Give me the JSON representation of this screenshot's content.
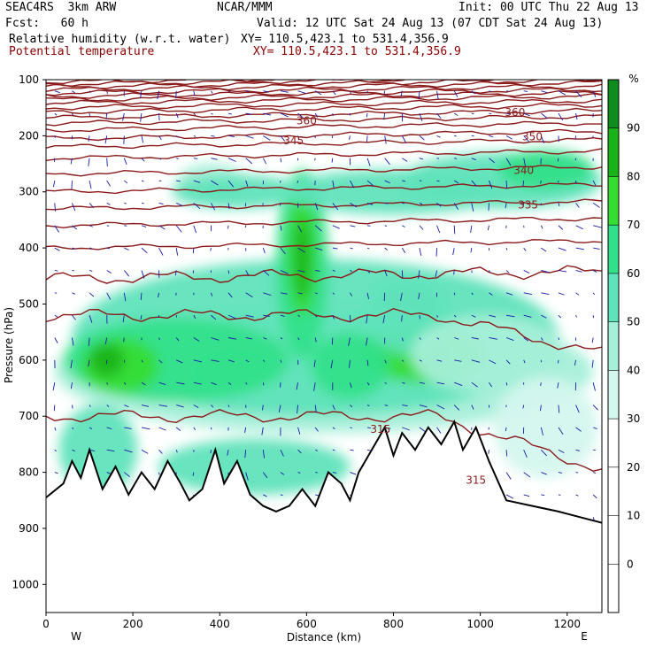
{
  "header": {
    "project": "SEAC4RS",
    "model": "3km ARW",
    "org": "NCAR/MMM",
    "init": "Init: 00 UTC Thu 22 Aug 13",
    "fcst_label": "Fcst:",
    "fcst_value": "60 h",
    "valid": "Valid: 12 UTC Sat 24 Aug 13 (07 CDT Sat 24 Aug 13)",
    "field1": "Relative humidity (w.r.t. water)",
    "field1_xy": "XY= 110.5,423.1 to 531.4,356.9",
    "field2": "Potential temperature",
    "field2_xy": "XY= 110.5,423.1 to 531.4,356.9"
  },
  "chart_data": {
    "type": "heatmap",
    "title": "",
    "xlabel": "Distance (km)",
    "ylabel": "Pressure (hPa)",
    "xlim": [
      0,
      1280
    ],
    "ylim": [
      100,
      1050
    ],
    "x_ticks": [
      0,
      200,
      400,
      600,
      800,
      1000,
      1200
    ],
    "y_ticks": [
      100,
      200,
      300,
      400,
      500,
      600,
      700,
      800,
      900,
      1000
    ],
    "y_inverted": true,
    "x_end_labels": {
      "left": "W",
      "right": "E"
    },
    "colorbar": {
      "unit": "%",
      "levels": [
        0,
        10,
        20,
        30,
        40,
        50,
        60,
        70,
        80,
        90
      ],
      "colors": [
        "#ffffff",
        "#ffffff",
        "#ffffff",
        "#d4f7ee",
        "#a6efd9",
        "#5fe3bb",
        "#33e08a",
        "#37dc33",
        "#19b319",
        "#0f8c1e"
      ]
    },
    "theta_contour_labels": [
      {
        "value": "360",
        "x": 600,
        "p": 180
      },
      {
        "value": "360",
        "x": 1080,
        "p": 165
      },
      {
        "value": "345",
        "x": 570,
        "p": 215
      },
      {
        "value": "350",
        "x": 1120,
        "p": 208
      },
      {
        "value": "340",
        "x": 1100,
        "p": 268
      },
      {
        "value": "335",
        "x": 1110,
        "p": 330
      },
      {
        "value": "315",
        "x": 770,
        "p": 730
      },
      {
        "value": "315",
        "x": 990,
        "p": 820
      }
    ],
    "terrain_pressure": [
      {
        "x": 0,
        "p": 845
      },
      {
        "x": 40,
        "p": 820
      },
      {
        "x": 60,
        "p": 780
      },
      {
        "x": 80,
        "p": 810
      },
      {
        "x": 100,
        "p": 760
      },
      {
        "x": 130,
        "p": 830
      },
      {
        "x": 160,
        "p": 790
      },
      {
        "x": 190,
        "p": 840
      },
      {
        "x": 220,
        "p": 800
      },
      {
        "x": 250,
        "p": 830
      },
      {
        "x": 280,
        "p": 780
      },
      {
        "x": 310,
        "p": 820
      },
      {
        "x": 330,
        "p": 850
      },
      {
        "x": 360,
        "p": 830
      },
      {
        "x": 390,
        "p": 760
      },
      {
        "x": 410,
        "p": 820
      },
      {
        "x": 440,
        "p": 780
      },
      {
        "x": 470,
        "p": 840
      },
      {
        "x": 500,
        "p": 860
      },
      {
        "x": 530,
        "p": 870
      },
      {
        "x": 560,
        "p": 860
      },
      {
        "x": 590,
        "p": 830
      },
      {
        "x": 620,
        "p": 860
      },
      {
        "x": 650,
        "p": 800
      },
      {
        "x": 680,
        "p": 820
      },
      {
        "x": 700,
        "p": 850
      },
      {
        "x": 720,
        "p": 800
      },
      {
        "x": 750,
        "p": 760
      },
      {
        "x": 780,
        "p": 720
      },
      {
        "x": 800,
        "p": 770
      },
      {
        "x": 820,
        "p": 730
      },
      {
        "x": 850,
        "p": 760
      },
      {
        "x": 880,
        "p": 720
      },
      {
        "x": 910,
        "p": 750
      },
      {
        "x": 940,
        "p": 710
      },
      {
        "x": 960,
        "p": 760
      },
      {
        "x": 990,
        "p": 720
      },
      {
        "x": 1020,
        "p": 780
      },
      {
        "x": 1060,
        "p": 850
      },
      {
        "x": 1120,
        "p": 860
      },
      {
        "x": 1180,
        "p": 870
      },
      {
        "x": 1230,
        "p": 880
      },
      {
        "x": 1280,
        "p": 890
      }
    ]
  }
}
